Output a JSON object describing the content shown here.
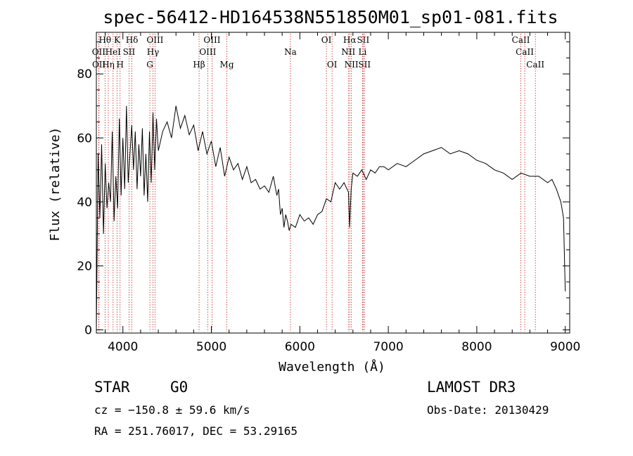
{
  "chart_data": {
    "type": "line",
    "title": "spec-56412-HD164538N551850M01_sp01-081.fits",
    "xlabel": "Wavelength (Å)",
    "ylabel": "Flux (relative)",
    "xlim": [
      3700,
      9050
    ],
    "ylim": [
      -1,
      93
    ],
    "x_ticks": [
      4000,
      5000,
      6000,
      7000,
      8000,
      9000
    ],
    "y_ticks": [
      0,
      20,
      40,
      60,
      80
    ],
    "series": [
      {
        "name": "spectrum",
        "x": [
          3700,
          3720,
          3740,
          3760,
          3780,
          3800,
          3820,
          3840,
          3860,
          3880,
          3900,
          3920,
          3940,
          3960,
          3980,
          4000,
          4020,
          4040,
          4060,
          4080,
          4100,
          4120,
          4140,
          4160,
          4180,
          4200,
          4220,
          4240,
          4260,
          4280,
          4300,
          4320,
          4340,
          4360,
          4380,
          4400,
          4450,
          4500,
          4550,
          4600,
          4650,
          4700,
          4750,
          4800,
          4850,
          4900,
          4950,
          5000,
          5050,
          5100,
          5150,
          5200,
          5250,
          5300,
          5350,
          5400,
          5450,
          5500,
          5550,
          5600,
          5650,
          5700,
          5720,
          5740,
          5760,
          5780,
          5800,
          5820,
          5840,
          5860,
          5880,
          5900,
          5950,
          6000,
          6050,
          6100,
          6150,
          6200,
          6250,
          6300,
          6350,
          6400,
          6450,
          6500,
          6550,
          6563,
          6580,
          6600,
          6650,
          6700,
          6750,
          6800,
          6850,
          6900,
          6950,
          7000,
          7100,
          7200,
          7300,
          7400,
          7500,
          7600,
          7700,
          7800,
          7900,
          8000,
          8100,
          8200,
          8300,
          8400,
          8500,
          8600,
          8700,
          8800,
          8850,
          8900,
          8950,
          8980,
          9000
        ],
        "values": [
          0,
          55,
          35,
          58,
          30,
          52,
          38,
          46,
          40,
          62,
          34,
          48,
          38,
          66,
          42,
          60,
          44,
          70,
          46,
          55,
          64,
          50,
          62,
          44,
          58,
          48,
          63,
          42,
          55,
          40,
          62,
          46,
          68,
          50,
          66,
          56,
          62,
          65,
          60,
          70,
          63,
          67,
          61,
          64,
          56,
          62,
          55,
          59,
          51,
          57,
          48,
          54,
          50,
          52,
          47,
          51,
          46,
          47,
          44,
          45,
          43,
          48,
          45,
          42,
          44,
          36,
          38,
          32,
          36,
          34,
          31,
          33,
          32,
          36,
          34,
          35,
          33,
          36,
          37,
          41,
          40,
          46,
          44,
          46,
          43,
          32,
          44,
          49,
          48,
          50,
          47,
          50,
          49,
          51,
          51,
          50,
          52,
          51,
          53,
          55,
          56,
          57,
          55,
          56,
          55,
          53,
          52,
          50,
          49,
          47,
          49,
          48,
          48,
          46,
          47,
          44,
          40,
          35,
          12
        ]
      }
    ],
    "lines": [
      {
        "name": "Hθ",
        "x": 3798,
        "row": 1
      },
      {
        "name": "OII",
        "x": 3727,
        "row": 2
      },
      {
        "name": "OII",
        "x": 3729,
        "row": 3
      },
      {
        "name": "Hη",
        "x": 3835,
        "row": 3
      },
      {
        "name": "HeI",
        "x": 3889,
        "row": 2
      },
      {
        "name": "K",
        "x": 3934,
        "row": 1
      },
      {
        "name": "H",
        "x": 3968,
        "row": 3
      },
      {
        "name": "SII",
        "x": 4069,
        "row": 2
      },
      {
        "name": "Hδ",
        "x": 4102,
        "row": 1
      },
      {
        "name": "OIII",
        "x": 4363,
        "row": 1
      },
      {
        "name": "Hγ",
        "x": 4340,
        "row": 2
      },
      {
        "name": "G",
        "x": 4305,
        "row": 3
      },
      {
        "name": "Hβ",
        "x": 4861,
        "row": 3
      },
      {
        "name": "OIII",
        "x": 5007,
        "row": 1
      },
      {
        "name": "OIII",
        "x": 4959,
        "row": 2
      },
      {
        "name": "Mg",
        "x": 5175,
        "row": 3
      },
      {
        "name": "Na",
        "x": 5894,
        "row": 2
      },
      {
        "name": "OI",
        "x": 6300,
        "row": 1
      },
      {
        "name": "OI",
        "x": 6364,
        "row": 3
      },
      {
        "name": "Hα",
        "x": 6563,
        "row": 1
      },
      {
        "name": "NII",
        "x": 6548,
        "row": 2
      },
      {
        "name": "NII",
        "x": 6583,
        "row": 3
      },
      {
        "name": "SII",
        "x": 6716,
        "row": 1
      },
      {
        "name": "SII",
        "x": 6731,
        "row": 3
      },
      {
        "name": "Li",
        "x": 6708,
        "row": 2
      },
      {
        "name": "CaII",
        "x": 8498,
        "row": 1
      },
      {
        "name": "CaII",
        "x": 8542,
        "row": 2
      },
      {
        "name": "CaII",
        "x": 8662,
        "row": 3
      }
    ]
  },
  "info": {
    "class": "STAR",
    "subclass": "G0",
    "survey": "LAMOST DR3",
    "cz": "cz = −150.8 ± 59.6 km/s",
    "obs_date": "Obs-Date: 20130429",
    "coords": "RA = 251.76017, DEC =  53.29165"
  },
  "colors": {
    "line": "#000000",
    "marker": "#cc2222"
  }
}
